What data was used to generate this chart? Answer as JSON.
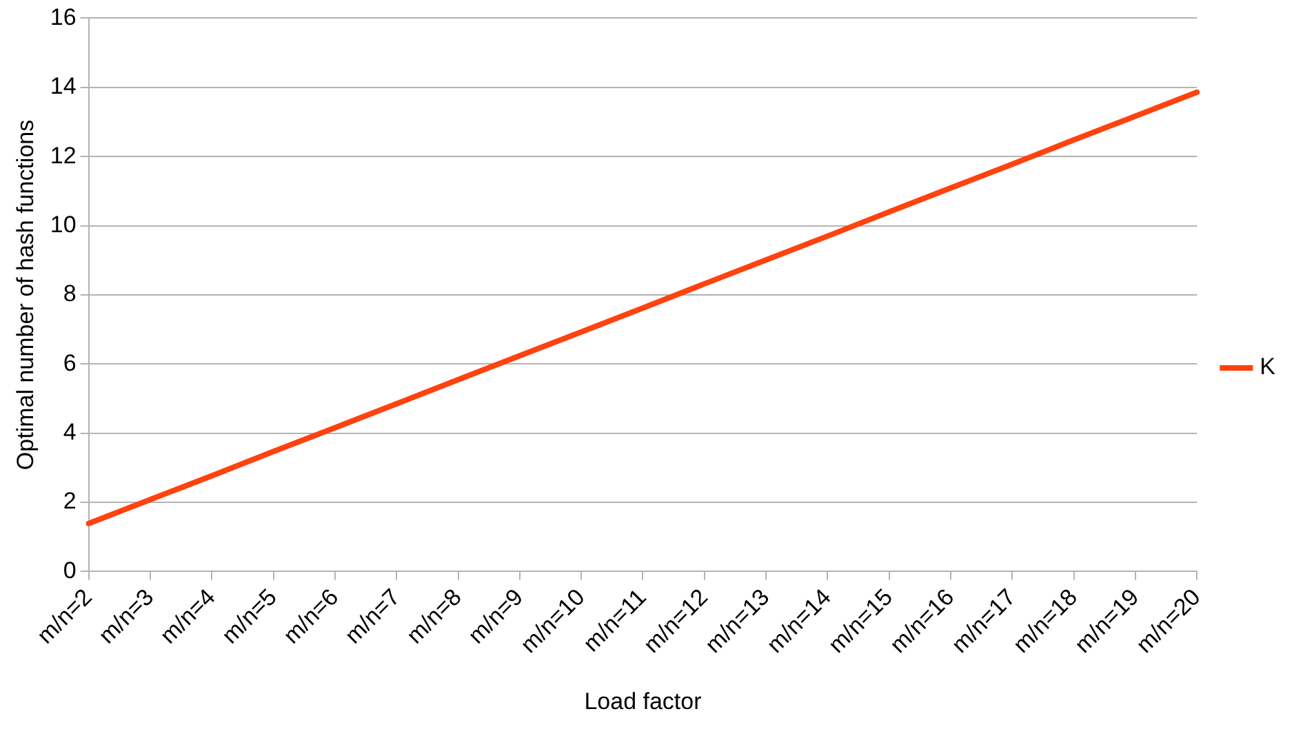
{
  "chart_data": {
    "type": "line",
    "xlabel": "Load factor",
    "ylabel": "Optimal number of hash functions",
    "categories": [
      "m/n=2",
      "m/n=3",
      "m/n=4",
      "m/n=5",
      "m/n=6",
      "m/n=7",
      "m/n=8",
      "m/n=9",
      "m/n=10",
      "m/n=11",
      "m/n=12",
      "m/n=13",
      "m/n=14",
      "m/n=15",
      "m/n=16",
      "m/n=17",
      "m/n=18",
      "m/n=19",
      "m/n=20"
    ],
    "series": [
      {
        "name": "K",
        "color": "#ff420e",
        "values": [
          1.39,
          2.08,
          2.77,
          3.47,
          4.16,
          4.85,
          5.55,
          6.24,
          6.93,
          7.62,
          8.32,
          9.01,
          9.7,
          10.4,
          11.09,
          11.78,
          12.48,
          13.17,
          13.86
        ]
      }
    ],
    "ylim": [
      0,
      16
    ],
    "yticks": [
      0,
      2,
      4,
      6,
      8,
      10,
      12,
      14,
      16
    ],
    "grid": "y",
    "legend": "right",
    "marker": "none",
    "line_style": "solid"
  }
}
